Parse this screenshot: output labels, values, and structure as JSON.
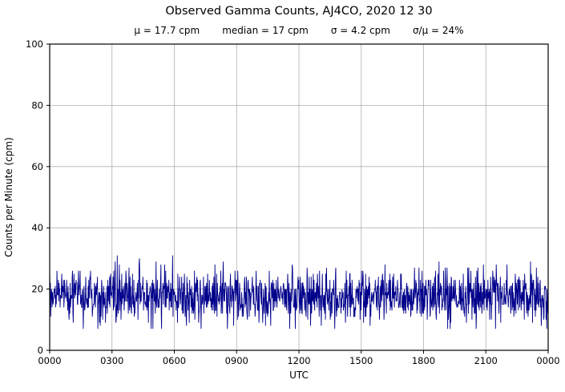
{
  "chart_data": {
    "type": "line",
    "title": "Observed Gamma Counts, AJ4CO, 2020 12 30",
    "stats": {
      "mu": "μ = 17.7 cpm",
      "median": "median = 17 cpm",
      "sigma": "σ = 4.2 cpm",
      "ratio": "σ/μ = 24%"
    },
    "xlabel": "UTC",
    "ylabel": "Counts per Minute (cpm)",
    "ylim": [
      0,
      100
    ],
    "yticks": [
      0,
      20,
      40,
      60,
      80,
      100
    ],
    "xtick_labels": [
      "0000",
      "0300",
      "0600",
      "0900",
      "1200",
      "1500",
      "1800",
      "2100",
      "0000"
    ],
    "x_span_minutes": 1440,
    "grid": true,
    "legend": false,
    "grid_color": "#b0b0b0",
    "axis_color": "#000000",
    "series": [
      {
        "name": "observed-gamma-counts",
        "color": "#00008b",
        "points": 1440,
        "mean": 17.7,
        "median": 17,
        "std": 4.2,
        "min": 7,
        "max": 32,
        "seed": 20201230,
        "note": "noisy one-minute count series; values are integers distributed around the mean"
      }
    ]
  }
}
